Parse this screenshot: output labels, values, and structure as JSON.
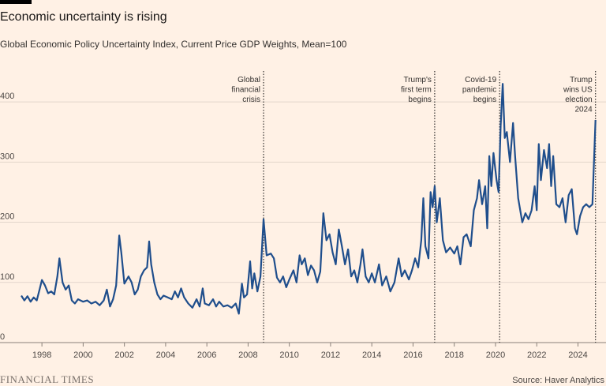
{
  "chart_data": {
    "type": "line",
    "title": "Economic uncertainty is rising",
    "subtitle": "Global Economic Policy Uncertainty Index, Current Price GDP Weights, Mean=100",
    "source": "Source: Haver Analytics",
    "brand": "FINANCIAL TIMES",
    "x": [
      1997.0,
      1997.15,
      1997.3,
      1997.45,
      1997.6,
      1997.75,
      1997.9,
      1998.0,
      1998.15,
      1998.3,
      1998.45,
      1998.6,
      1998.75,
      1998.85,
      1999.0,
      1999.15,
      1999.3,
      1999.45,
      1999.6,
      1999.75,
      2000.0,
      2000.2,
      2000.4,
      2000.6,
      2000.8,
      2001.0,
      2001.15,
      2001.3,
      2001.45,
      2001.6,
      2001.75,
      2001.85,
      2002.0,
      2002.2,
      2002.35,
      2002.5,
      2002.65,
      2002.8,
      2002.95,
      2003.1,
      2003.2,
      2003.3,
      2003.45,
      2003.6,
      2003.75,
      2003.9,
      2004.1,
      2004.3,
      2004.45,
      2004.6,
      2004.75,
      2004.9,
      2005.1,
      2005.3,
      2005.5,
      2005.65,
      2005.8,
      2005.9,
      2006.1,
      2006.3,
      2006.45,
      2006.6,
      2006.8,
      2007.0,
      2007.2,
      2007.4,
      2007.55,
      2007.7,
      2007.8,
      2007.95,
      2008.1,
      2008.2,
      2008.3,
      2008.45,
      2008.6,
      2008.75,
      2008.9,
      2009.1,
      2009.25,
      2009.4,
      2009.55,
      2009.7,
      2009.85,
      2010.0,
      2010.2,
      2010.35,
      2010.5,
      2010.6,
      2010.75,
      2010.9,
      2011.05,
      2011.2,
      2011.35,
      2011.5,
      2011.65,
      2011.8,
      2011.95,
      2012.1,
      2012.25,
      2012.4,
      2012.55,
      2012.7,
      2012.85,
      2013.0,
      2013.15,
      2013.3,
      2013.45,
      2013.55,
      2013.7,
      2013.85,
      2014.0,
      2014.15,
      2014.35,
      2014.5,
      2014.7,
      2014.9,
      2015.1,
      2015.3,
      2015.45,
      2015.6,
      2015.8,
      2015.95,
      2016.1,
      2016.25,
      2016.4,
      2016.5,
      2016.6,
      2016.75,
      2016.85,
      2016.95,
      2017.05,
      2017.15,
      2017.3,
      2017.45,
      2017.6,
      2017.8,
      2018.0,
      2018.15,
      2018.3,
      2018.45,
      2018.6,
      2018.8,
      2018.95,
      2019.1,
      2019.2,
      2019.35,
      2019.5,
      2019.6,
      2019.7,
      2019.8,
      2019.9,
      2020.05,
      2020.15,
      2020.25,
      2020.35,
      2020.45,
      2020.55,
      2020.7,
      2020.85,
      2020.95,
      2021.1,
      2021.3,
      2021.45,
      2021.6,
      2021.75,
      2021.9,
      2022.0,
      2022.1,
      2022.2,
      2022.35,
      2022.5,
      2022.6,
      2022.7,
      2022.8,
      2022.95,
      2023.1,
      2023.25,
      2023.4,
      2023.55,
      2023.7,
      2023.85,
      2023.95,
      2024.1,
      2024.25,
      2024.4,
      2024.55,
      2024.7,
      2024.85
    ],
    "values": [
      78,
      70,
      77,
      68,
      75,
      70,
      90,
      104,
      95,
      82,
      85,
      80,
      110,
      140,
      100,
      88,
      95,
      70,
      65,
      72,
      68,
      70,
      65,
      68,
      62,
      70,
      88,
      60,
      72,
      95,
      178,
      150,
      98,
      110,
      100,
      80,
      88,
      110,
      120,
      125,
      168,
      130,
      100,
      80,
      72,
      78,
      75,
      72,
      85,
      75,
      90,
      75,
      65,
      58,
      72,
      60,
      90,
      65,
      62,
      72,
      60,
      68,
      60,
      62,
      58,
      65,
      48,
      98,
      75,
      80,
      135,
      90,
      115,
      85,
      110,
      205,
      145,
      148,
      140,
      108,
      100,
      110,
      92,
      105,
      120,
      100,
      145,
      130,
      140,
      112,
      128,
      120,
      100,
      118,
      215,
      170,
      180,
      150,
      130,
      188,
      160,
      130,
      155,
      110,
      120,
      100,
      130,
      155,
      110,
      100,
      115,
      100,
      130,
      95,
      110,
      85,
      100,
      140,
      110,
      120,
      105,
      120,
      140,
      125,
      170,
      240,
      160,
      140,
      250,
      225,
      260,
      200,
      240,
      170,
      150,
      158,
      148,
      160,
      130,
      175,
      180,
      160,
      220,
      240,
      270,
      230,
      260,
      190,
      310,
      260,
      315,
      270,
      250,
      360,
      430,
      340,
      350,
      300,
      365,
      310,
      240,
      200,
      215,
      205,
      220,
      260,
      220,
      330,
      270,
      320,
      290,
      330,
      260,
      310,
      230,
      225,
      240,
      200,
      245,
      255,
      190,
      180,
      210,
      225,
      230,
      225,
      230,
      370
    ],
    "color": "#1f4e8c",
    "xlim": [
      1997,
      2024.9
    ],
    "xticks": [
      1998,
      2000,
      2002,
      2004,
      2006,
      2008,
      2010,
      2012,
      2014,
      2016,
      2018,
      2020,
      2022,
      2024
    ],
    "ylim": [
      0,
      450
    ],
    "yticks": [
      0,
      100,
      200,
      300,
      400
    ],
    "grid": true,
    "annotations": [
      {
        "x": 2008.75,
        "lines": [
          "Global",
          "financial",
          "crisis"
        ]
      },
      {
        "x": 2017.05,
        "lines": [
          "Trump's",
          "first term",
          "begins"
        ]
      },
      {
        "x": 2020.2,
        "lines": [
          "Covid-19",
          "pandemic",
          "begins"
        ]
      },
      {
        "x": 2024.85,
        "lines": [
          "Trump",
          "wins US",
          "election",
          "2024"
        ]
      }
    ]
  }
}
